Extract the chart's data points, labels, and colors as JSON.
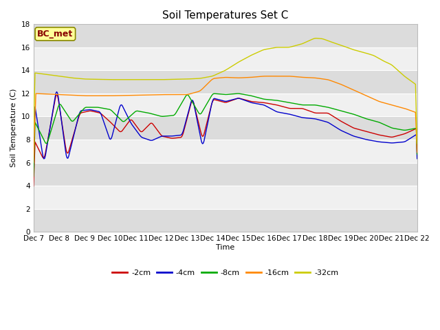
{
  "title": "Soil Temperatures Set C",
  "xlabel": "Time",
  "ylabel": "Soil Temperature (C)",
  "ylim": [
    0,
    18
  ],
  "yticks": [
    0,
    2,
    4,
    6,
    8,
    10,
    12,
    14,
    16,
    18
  ],
  "x_tick_labels": [
    "Dec 7",
    "Dec 8",
    "Dec 9",
    "Dec 10",
    "Dec 11",
    "Dec 12",
    "Dec 13",
    "Dec 14",
    "Dec 15",
    "Dec 16",
    "Dec 17",
    "Dec 18",
    "Dec 19",
    "Dec 20",
    "Dec 21",
    "Dec 22"
  ],
  "series_colors": [
    "#cc0000",
    "#0000cc",
    "#00aa00",
    "#ff8800",
    "#cccc00"
  ],
  "series_labels": [
    "-2cm",
    "-4cm",
    "-8cm",
    "-16cm",
    "-32cm"
  ],
  "background_color": "#ffffff",
  "plot_bg_light": "#f0f0f0",
  "plot_bg_dark": "#d8d8d8",
  "annotation_label": "BC_met",
  "annotation_bg": "#ffff99",
  "annotation_border": "#888800",
  "annotation_text_color": "#880000",
  "grid_color": "#ffffff",
  "linewidth": 1.0,
  "title_fontsize": 11,
  "label_fontsize": 8,
  "tick_fontsize": 7.5
}
